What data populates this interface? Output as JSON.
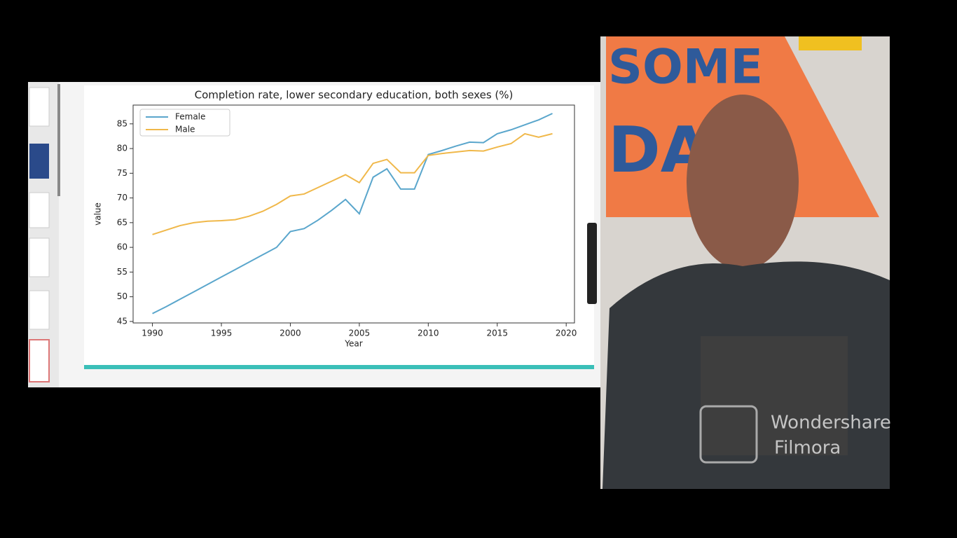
{
  "chart_data": {
    "type": "line",
    "title": "Completion rate, lower secondary education, both sexes (%)",
    "x_label": "Year",
    "y_label": "value",
    "x": [
      1990,
      1991,
      1992,
      1993,
      1994,
      1995,
      1996,
      1997,
      1998,
      1999,
      2000,
      2001,
      2002,
      2003,
      2004,
      2005,
      2006,
      2007,
      2008,
      2009,
      2010,
      2011,
      2012,
      2013,
      2014,
      2015,
      2016,
      2017,
      2018,
      2019
    ],
    "series": [
      {
        "name": "Female",
        "color": "#5aa6cc",
        "values": [
          46.6,
          48,
          49.5,
          51,
          52.5,
          54,
          55.5,
          57,
          58.5,
          60,
          63.2,
          63.8,
          65.5,
          67.5,
          69.7,
          66.8,
          74.2,
          75.9,
          71.8,
          71.8,
          78.8,
          79.6,
          80.5,
          81.3,
          81.2,
          83,
          83.8,
          84.8,
          85.8,
          87.1
        ]
      },
      {
        "name": "Male",
        "color": "#f0b84a",
        "values": [
          62.6,
          63.5,
          64.4,
          65,
          65.3,
          65.4,
          65.6,
          66.3,
          67.3,
          68.7,
          70.4,
          70.8,
          72.1,
          73.4,
          74.7,
          73.1,
          77,
          77.8,
          75.1,
          75.1,
          78.6,
          79,
          79.3,
          79.6,
          79.5,
          80.3,
          81,
          83,
          82.3,
          83
        ]
      }
    ],
    "xlim": [
      1988.6,
      2020.6
    ],
    "ylim": [
      44.7,
      88.8
    ],
    "xticks": [
      1990,
      1995,
      2000,
      2005,
      2010,
      2015,
      2020
    ],
    "yticks": [
      45,
      50,
      55,
      60,
      65,
      70,
      75,
      80,
      85
    ],
    "legend": "upper left"
  },
  "overlay": {
    "backdrop_text": [
      "SOME",
      "DA"
    ],
    "watermark": [
      "Wondershare",
      "Filmora"
    ]
  }
}
